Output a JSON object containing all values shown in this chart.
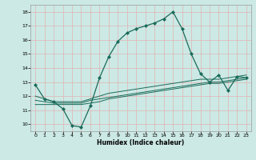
{
  "xlabel": "Humidex (Indice chaleur)",
  "background_color": "#cce9e5",
  "grid_color": "#ddbbbb",
  "line_color": "#1a6b5a",
  "xlim": [
    -0.5,
    23.5
  ],
  "ylim": [
    9.5,
    18.5
  ],
  "xticks": [
    0,
    1,
    2,
    3,
    4,
    5,
    6,
    7,
    8,
    9,
    10,
    11,
    12,
    13,
    14,
    15,
    16,
    17,
    18,
    19,
    20,
    21,
    22,
    23
  ],
  "yticks": [
    10,
    11,
    12,
    13,
    14,
    15,
    16,
    17,
    18
  ],
  "series1_x": [
    0,
    1,
    2,
    3,
    4,
    5,
    6,
    7,
    8,
    9,
    10,
    11,
    12,
    13,
    14,
    15,
    16,
    17,
    18,
    19,
    20,
    21,
    22,
    23
  ],
  "series1_y": [
    12.8,
    11.8,
    11.6,
    11.1,
    9.9,
    9.8,
    11.3,
    13.3,
    14.8,
    15.9,
    16.5,
    16.8,
    17.0,
    17.2,
    17.5,
    18.0,
    16.8,
    15.0,
    13.6,
    13.0,
    13.5,
    12.4,
    13.4,
    13.3
  ],
  "series2_x": [
    0,
    1,
    2,
    3,
    4,
    5,
    6,
    7,
    8,
    9,
    10,
    11,
    12,
    13,
    14,
    15,
    16,
    17,
    18,
    19,
    20,
    21,
    22,
    23
  ],
  "series2_y": [
    12.0,
    11.8,
    11.6,
    11.6,
    11.6,
    11.6,
    11.8,
    12.0,
    12.2,
    12.3,
    12.4,
    12.5,
    12.6,
    12.7,
    12.8,
    12.9,
    13.0,
    13.1,
    13.2,
    13.2,
    13.2,
    13.3,
    13.4,
    13.5
  ],
  "series3_x": [
    0,
    1,
    2,
    3,
    4,
    5,
    6,
    7,
    8,
    9,
    10,
    11,
    12,
    13,
    14,
    15,
    16,
    17,
    18,
    19,
    20,
    21,
    22,
    23
  ],
  "series3_y": [
    11.7,
    11.6,
    11.5,
    11.5,
    11.5,
    11.5,
    11.7,
    11.8,
    11.9,
    12.0,
    12.1,
    12.2,
    12.3,
    12.4,
    12.5,
    12.6,
    12.7,
    12.8,
    12.9,
    13.0,
    13.0,
    13.1,
    13.2,
    13.3
  ],
  "series4_x": [
    0,
    1,
    2,
    3,
    4,
    5,
    6,
    7,
    8,
    9,
    10,
    11,
    12,
    13,
    14,
    15,
    16,
    17,
    18,
    19,
    20,
    21,
    22,
    23
  ],
  "series4_y": [
    11.4,
    11.4,
    11.4,
    11.4,
    11.4,
    11.4,
    11.5,
    11.6,
    11.8,
    11.9,
    12.0,
    12.1,
    12.2,
    12.3,
    12.4,
    12.5,
    12.6,
    12.7,
    12.8,
    12.9,
    12.9,
    13.0,
    13.1,
    13.2
  ]
}
